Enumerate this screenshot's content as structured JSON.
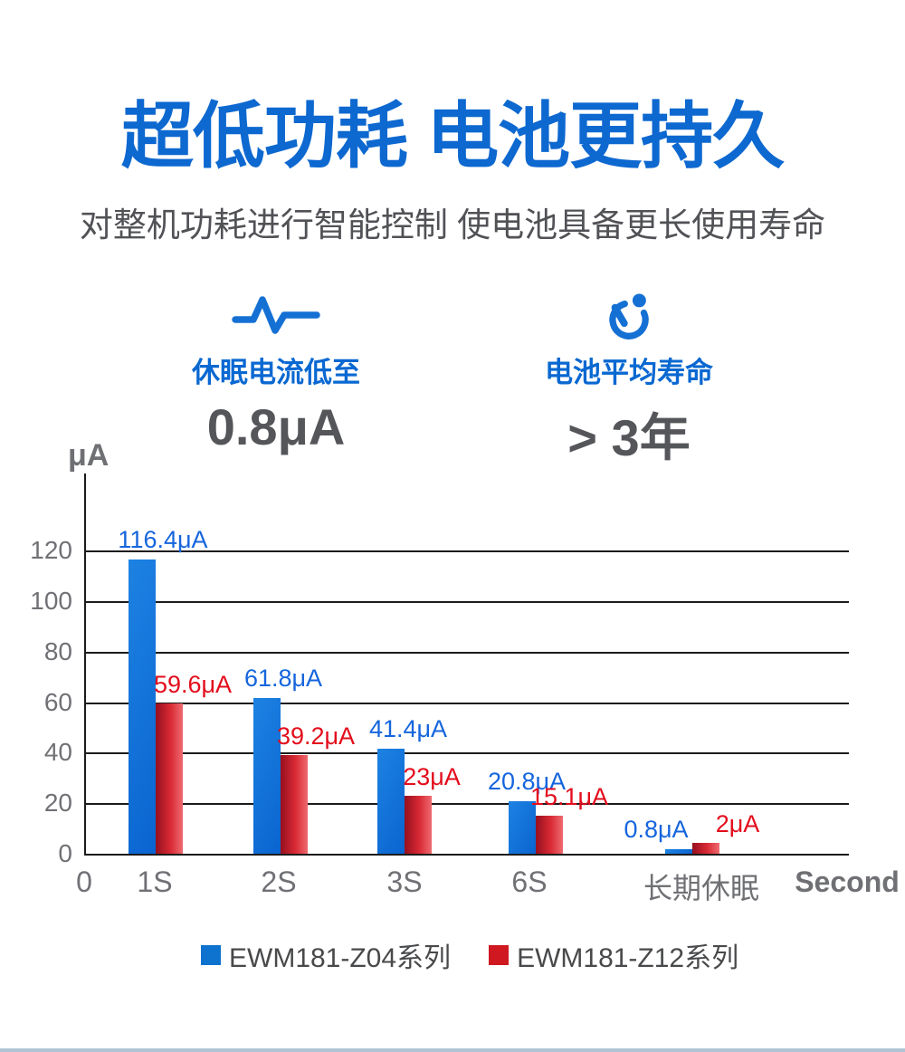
{
  "page": {
    "title": "超低功耗 电池更持久",
    "subtitle": "对整机功耗进行智能控制 使电池具备更长使用寿命"
  },
  "features": [
    {
      "icon": "pulse-icon",
      "label": "休眠电流低至",
      "value": "0.8μA"
    },
    {
      "icon": "timer-icon",
      "label": "电池平均寿命",
      "value": "> 3年"
    }
  ],
  "chart_data": {
    "type": "bar",
    "title": "",
    "ylabel": "μA",
    "xlabel": "Second",
    "x_origin_label": "0",
    "ylim": [
      0,
      140
    ],
    "yticks": [
      0,
      20,
      40,
      60,
      80,
      100,
      120
    ],
    "grid": true,
    "legend_position": "bottom",
    "categories": [
      "1S",
      "2S",
      "3S",
      "6S",
      "长期休眠"
    ],
    "series": [
      {
        "name": "EWM181-Z04系列",
        "color": "#0e72cf",
        "values": [
          116.4,
          61.8,
          41.4,
          20.8,
          0.8
        ],
        "labels": [
          "116.4μA",
          "61.8μA",
          "41.4μA",
          "20.8μA",
          "0.8μA"
        ]
      },
      {
        "name": "EWM181-Z12系列",
        "color": "#cf1820",
        "values": [
          59.6,
          39.2,
          23,
          15.1,
          2
        ],
        "labels": [
          "59.6μA",
          "39.2μA",
          "23μA",
          "15.1μA",
          "2μA"
        ]
      }
    ]
  },
  "colors": {
    "title_blue": "#0d68d0",
    "bar_blue": "#0e72cf",
    "bar_red": "#cf1820",
    "label_blue": "#1565dd",
    "label_red": "#e30d1c",
    "grid": "#1b1b1b",
    "tick_gray": "#707175",
    "bottom_line": "#aec4d4"
  }
}
